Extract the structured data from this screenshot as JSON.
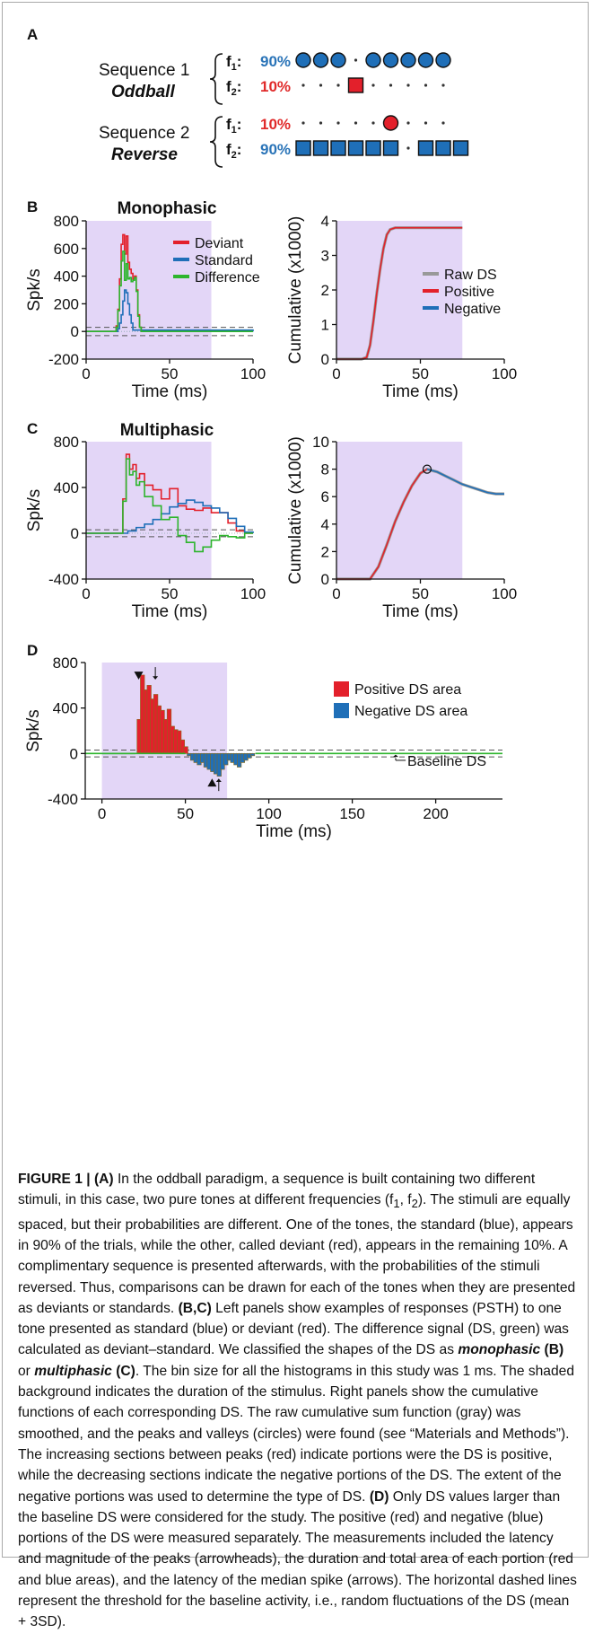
{
  "panels": {
    "a": {
      "letter": "A",
      "seq1_name": "Sequence 1",
      "seq1_type": "Oddball",
      "seq2_name": "Sequence 2",
      "seq2_type": "Reverse",
      "f1": "f",
      "f1_sub": "1",
      "f2": "f",
      "f2_sub": "2",
      "p90": "90%",
      "p10": "10%",
      "seq1_row1": "circle,circle,circle,dot,circle,circle,circle,circle,circle",
      "seq1_row2": "dot,dot,dot,square,dot,dot,dot,dot,dot",
      "seq2_row1": "dot,dot,dot,dot,dot,circle,dot,dot,dot",
      "seq2_row2": "square,square,square,square,square,square,dot,square,square,square"
    },
    "b": {
      "letter": "B",
      "title": "Monophasic"
    },
    "c": {
      "letter": "C",
      "title": "Multiphasic"
    },
    "d": {
      "letter": "D"
    }
  },
  "colors": {
    "deviant": "#e3202b",
    "standard": "#1f6fb8",
    "difference": "#2db52d",
    "raw": "#999999",
    "shade": "#e3d6f7",
    "f1_text": "#2a74b8",
    "f2_text": "#e02a2a",
    "baseline": "#555555"
  },
  "legend_psth": [
    "Deviant",
    "Standard",
    "Difference"
  ],
  "legend_cum": [
    "Raw DS",
    "Positive",
    "Negative"
  ],
  "legend_d": [
    "Positive DS area",
    "Negative DS area"
  ],
  "annotation_baseline": "Baseline DS",
  "axis": {
    "spk": "Spk/s",
    "time": "Time (ms)",
    "cumulative": "Cumulative (x1000)"
  },
  "chart_data": [
    {
      "id": "B-left",
      "type": "line",
      "title": "Monophasic",
      "xlabel": "Time (ms)",
      "ylabel": "Spk/s",
      "xlim": [
        0,
        100
      ],
      "ylim": [
        -200,
        800
      ],
      "xticks": [
        0,
        50,
        100
      ],
      "yticks": [
        -200,
        0,
        200,
        400,
        600,
        800
      ],
      "shaded_x": [
        0,
        75
      ],
      "series": [
        {
          "name": "Deviant",
          "x": [
            0,
            17,
            18,
            19,
            20,
            21,
            22,
            23,
            24,
            25,
            26,
            27,
            28,
            29,
            30,
            31,
            32,
            33,
            100
          ],
          "y": [
            0,
            0,
            40,
            160,
            380,
            630,
            700,
            560,
            690,
            500,
            450,
            420,
            380,
            400,
            300,
            120,
            30,
            0,
            0
          ]
        },
        {
          "name": "Standard",
          "x": [
            0,
            18,
            19,
            20,
            21,
            22,
            23,
            24,
            25,
            26,
            27,
            28,
            100
          ],
          "y": [
            0,
            0,
            20,
            60,
            120,
            220,
            300,
            280,
            200,
            120,
            60,
            10,
            0
          ]
        },
        {
          "name": "Difference",
          "x": [
            0,
            17,
            18,
            19,
            20,
            21,
            22,
            23,
            24,
            25,
            26,
            27,
            28,
            29,
            30,
            31,
            32,
            33,
            100
          ],
          "y": [
            0,
            0,
            30,
            150,
            330,
            510,
            580,
            370,
            490,
            380,
            390,
            360,
            370,
            390,
            290,
            110,
            30,
            0,
            0
          ]
        }
      ]
    },
    {
      "id": "B-right",
      "type": "line",
      "xlabel": "Time (ms)",
      "ylabel": "Cumulative (x1000)",
      "xlim": [
        0,
        100
      ],
      "ylim": [
        0,
        4
      ],
      "xticks": [
        0,
        50,
        100
      ],
      "yticks": [
        0,
        1,
        2,
        3,
        4
      ],
      "shaded_x": [
        0,
        75
      ],
      "series": [
        {
          "name": "Raw DS",
          "x": [
            0,
            15,
            18,
            20,
            22,
            24,
            26,
            28,
            30,
            32,
            35,
            75
          ],
          "y": [
            0,
            0,
            0.05,
            0.4,
            1.1,
            1.9,
            2.6,
            3.2,
            3.6,
            3.75,
            3.8,
            3.8
          ]
        },
        {
          "name": "Positive",
          "x": [
            0,
            15,
            18,
            20,
            22,
            24,
            26,
            28,
            30,
            32,
            35,
            75
          ],
          "y": [
            0,
            0,
            0.05,
            0.4,
            1.1,
            1.9,
            2.6,
            3.2,
            3.6,
            3.75,
            3.8,
            3.8
          ]
        }
      ]
    },
    {
      "id": "C-left",
      "type": "line",
      "title": "Multiphasic",
      "xlabel": "Time (ms)",
      "ylabel": "Spk/s",
      "xlim": [
        0,
        100
      ],
      "ylim": [
        -400,
        800
      ],
      "xticks": [
        0,
        50,
        100
      ],
      "yticks": [
        -400,
        0,
        400,
        800
      ],
      "shaded_x": [
        0,
        75
      ],
      "series": [
        {
          "name": "Deviant",
          "x": [
            0,
            20,
            22,
            24,
            26,
            28,
            30,
            32,
            35,
            40,
            45,
            50,
            55,
            60,
            65,
            70,
            75,
            80,
            85,
            90,
            95,
            100
          ],
          "y": [
            0,
            0,
            300,
            690,
            560,
            600,
            480,
            520,
            420,
            380,
            300,
            390,
            240,
            210,
            200,
            220,
            180,
            180,
            90,
            20,
            0,
            0
          ]
        },
        {
          "name": "Standard",
          "x": [
            0,
            20,
            25,
            30,
            35,
            40,
            45,
            50,
            55,
            60,
            65,
            70,
            75,
            80,
            85,
            90,
            95,
            100
          ],
          "y": [
            0,
            0,
            20,
            50,
            80,
            120,
            170,
            230,
            260,
            290,
            270,
            240,
            220,
            180,
            130,
            60,
            10,
            0
          ]
        },
        {
          "name": "Difference",
          "x": [
            0,
            20,
            22,
            24,
            26,
            28,
            30,
            32,
            35,
            40,
            45,
            50,
            55,
            60,
            65,
            70,
            75,
            80,
            85,
            90,
            95,
            100
          ],
          "y": [
            0,
            0,
            280,
            650,
            510,
            540,
            420,
            450,
            320,
            240,
            120,
            140,
            -20,
            -80,
            -160,
            -120,
            -60,
            -20,
            -30,
            -40,
            0,
            0
          ]
        }
      ]
    },
    {
      "id": "C-right",
      "type": "line",
      "xlabel": "Time (ms)",
      "ylabel": "Cumulative (x1000)",
      "xlim": [
        0,
        100
      ],
      "ylim": [
        0,
        10
      ],
      "xticks": [
        0,
        50,
        100
      ],
      "yticks": [
        0,
        2,
        4,
        6,
        8,
        10
      ],
      "shaded_x": [
        0,
        75
      ],
      "series": [
        {
          "name": "Raw DS",
          "x": [
            0,
            20,
            25,
            30,
            35,
            40,
            45,
            50,
            54,
            60,
            65,
            70,
            75,
            80,
            85,
            90,
            95,
            100
          ],
          "y": [
            0,
            0,
            0.9,
            2.5,
            4.2,
            5.6,
            6.8,
            7.7,
            8.0,
            7.8,
            7.5,
            7.2,
            6.9,
            6.7,
            6.5,
            6.3,
            6.2,
            6.2
          ]
        },
        {
          "name": "Positive",
          "x": [
            0,
            20,
            25,
            30,
            35,
            40,
            45,
            50,
            54
          ],
          "y": [
            0,
            0,
            0.9,
            2.5,
            4.2,
            5.6,
            6.8,
            7.7,
            8.0
          ]
        },
        {
          "name": "Negative",
          "x": [
            54,
            60,
            65,
            70,
            75,
            80,
            85,
            90,
            95,
            100
          ],
          "y": [
            8.0,
            7.8,
            7.5,
            7.2,
            6.9,
            6.7,
            6.5,
            6.3,
            6.2,
            6.2
          ]
        }
      ]
    },
    {
      "id": "D",
      "type": "bar",
      "xlabel": "Time (ms)",
      "ylabel": "Spk/s",
      "xlim": [
        -10,
        240
      ],
      "ylim": [
        -400,
        800
      ],
      "xticks": [
        0,
        50,
        100,
        150,
        200
      ],
      "yticks": [
        -400,
        0,
        400,
        800
      ],
      "shaded_x": [
        0,
        75
      ],
      "baseline_threshold": [
        30,
        -30
      ],
      "series": [
        {
          "name": "Positive DS area",
          "x": [
            22,
            24,
            26,
            28,
            30,
            32,
            34,
            36,
            38,
            40,
            42,
            44,
            46,
            48,
            50
          ],
          "y": [
            300,
            690,
            560,
            600,
            480,
            520,
            420,
            380,
            300,
            390,
            240,
            210,
            200,
            120,
            60
          ]
        },
        {
          "name": "Negative DS area",
          "x": [
            52,
            54,
            56,
            58,
            60,
            62,
            64,
            66,
            68,
            70,
            72,
            74,
            76,
            78,
            80,
            82,
            84,
            86,
            88,
            90
          ],
          "y": [
            -20,
            -60,
            -80,
            -100,
            -80,
            -120,
            -140,
            -160,
            -180,
            -200,
            -140,
            -100,
            -60,
            -80,
            -100,
            -120,
            -80,
            -60,
            -40,
            -20
          ]
        }
      ]
    }
  ],
  "caption": {
    "fig_label": "FIGURE 1 |",
    "part_a_label": "(A)",
    "part_a_1": " In the oddball paradigm, a sequence is built containing two different stimuli, in this case, two pure tones at different frequencies (f",
    "part_a_sub1": "1",
    "part_a_2": ", f",
    "part_a_sub2": "2",
    "part_a_3": "). The stimuli are equally spaced, but their probabilities are different. One of the tones, the standard (blue), appears in 90% of the trials, while the other, called deviant (red), appears in the remaining 10%. A complimentary sequence is presented afterwards, with the probabilities of the stimuli reversed. Thus, comparisons can be drawn for each of the tones when they are presented as deviants or standards. ",
    "part_bc_label": "(B,C)",
    "part_bc_1": " Left panels show examples of responses (PSTH) to one tone presented as standard (blue) or deviant (red). The difference signal (DS, green) was calculated as deviant–standard. We classified the shapes of the DS as ",
    "mono": "monophasic",
    "b_label": "(B)",
    "or_text": " or ",
    "multi": "multiphasic",
    "c_label": "(C)",
    "part_bc_2": ". The bin size for all the histograms in this study was 1 ms. The shaded background indicates the duration of the stimulus. Right panels show the cumulative functions of each corresponding DS. The raw cumulative sum function (gray) was smoothed, and the peaks and valleys (circles) were found (see “Materials and Methods”). The increasing sections between peaks (red) indicate portions were the DS is positive, while the decreasing sections indicate the negative portions of the DS. The extent of the negative portions was used to determine the type of DS. ",
    "part_d_label": "(D)",
    "part_d_1": " Only DS values larger than the baseline DS were considered for the study. The positive (red) and negative (blue) portions of the DS were measured separately. The measurements included the latency and magnitude of the peaks (arrowheads), the duration and total area of each portion (red and blue areas), and the latency of the median spike (arrows). The horizontal dashed lines represent the threshold for the baseline activity, i.e., random fluctuations of the DS (mean + 3SD)."
  }
}
